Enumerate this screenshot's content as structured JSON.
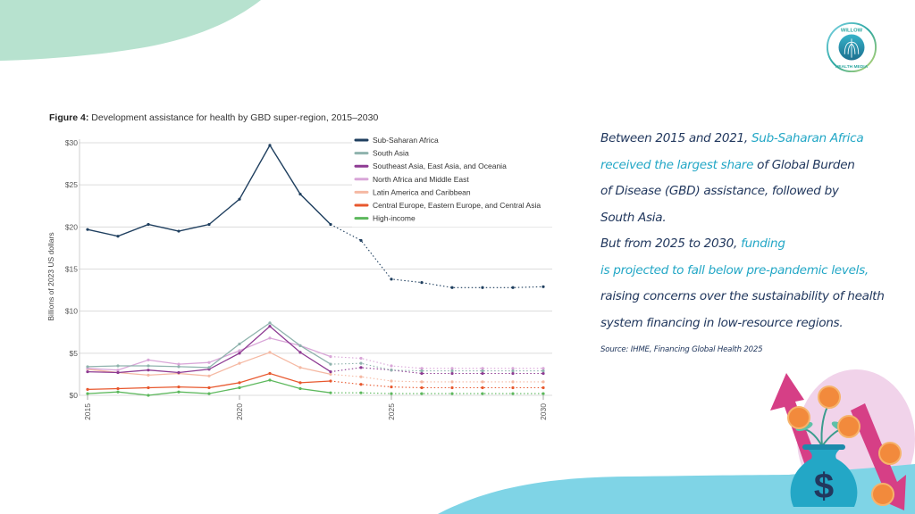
{
  "brand": {
    "name": "Willow Health Media",
    "logo_text_top": "WILLOW",
    "logo_text_bottom": "HEALTH MEDIA",
    "colors": {
      "navy": "#22385e",
      "teal": "#23a7c6",
      "mint": "#b7e2cf",
      "sky": "#7fd4e6",
      "pink": "#d63f86",
      "lilac": "#f1d3ea"
    }
  },
  "figure": {
    "label": "Figure 4:",
    "title": "Development assistance for health by GBD super-region, 2015–2030"
  },
  "chart_data": {
    "type": "line",
    "title": "Development assistance for health by GBD super-region, 2015–2030",
    "xlabel": "",
    "ylabel": "Billions of 2023 US dollars",
    "ylim": [
      0,
      30
    ],
    "xlim": [
      2015,
      2030
    ],
    "yticks": [
      0,
      5,
      10,
      15,
      20,
      25,
      30
    ],
    "ytick_labels": [
      "$0",
      "$5",
      "$10",
      "$15",
      "$20",
      "$25",
      "$30"
    ],
    "xticks": [
      2015,
      2020,
      2025,
      2030
    ],
    "xtick_labels": [
      "2015",
      "2020",
      "2025",
      "2030"
    ],
    "grid": "horizontal",
    "legend_position": "top-right",
    "projection_start": 2023,
    "projection_style": "dotted",
    "x": [
      2015,
      2016,
      2017,
      2018,
      2019,
      2020,
      2021,
      2022,
      2023,
      2024,
      2025,
      2026,
      2027,
      2028,
      2029,
      2030
    ],
    "series": [
      {
        "name": "Sub-Saharan Africa",
        "color": "#1f3f5f",
        "values": [
          19.7,
          18.9,
          20.3,
          19.5,
          20.3,
          23.3,
          29.7,
          23.9,
          20.3,
          18.4,
          13.8,
          13.4,
          12.8,
          12.8,
          12.8,
          12.9
        ]
      },
      {
        "name": "South Asia",
        "color": "#8fb3ad",
        "values": [
          3.4,
          3.5,
          3.5,
          3.4,
          3.3,
          6.1,
          8.6,
          5.9,
          3.7,
          3.8,
          3.0,
          2.9,
          2.9,
          2.9,
          2.9,
          2.9
        ]
      },
      {
        "name": "Southeast Asia, East Asia, and Oceania",
        "color": "#8e3b93",
        "values": [
          2.8,
          2.7,
          3.0,
          2.7,
          3.1,
          5.0,
          8.2,
          5.1,
          2.8,
          3.3,
          3.0,
          2.6,
          2.6,
          2.6,
          2.6,
          2.6
        ]
      },
      {
        "name": "North Africa and Middle East",
        "color": "#d9a6d8",
        "values": [
          3.2,
          3.0,
          4.2,
          3.7,
          3.9,
          5.3,
          6.8,
          5.9,
          4.6,
          4.4,
          3.5,
          3.2,
          3.2,
          3.2,
          3.2,
          3.2
        ]
      },
      {
        "name": "Latin America and Caribbean",
        "color": "#f5b9a3",
        "values": [
          3.1,
          2.7,
          2.4,
          2.6,
          2.3,
          3.8,
          5.1,
          3.3,
          2.5,
          2.2,
          1.7,
          1.6,
          1.6,
          1.6,
          1.6,
          1.6
        ]
      },
      {
        "name": "Central Europe, Eastern Europe, and Central Asia",
        "color": "#e8582e",
        "values": [
          0.7,
          0.8,
          0.9,
          1.0,
          0.9,
          1.5,
          2.6,
          1.5,
          1.7,
          1.3,
          1.0,
          0.9,
          0.9,
          0.9,
          0.9,
          0.9
        ]
      },
      {
        "name": "High-income",
        "color": "#5cb85c",
        "values": [
          0.2,
          0.4,
          0.0,
          0.4,
          0.2,
          0.9,
          1.8,
          0.8,
          0.3,
          0.3,
          0.2,
          0.2,
          0.2,
          0.2,
          0.2,
          0.2
        ]
      }
    ]
  },
  "narrative": {
    "p1_a": "Between 2015 and 2021, ",
    "p1_hl1": "Sub-Saharan Africa",
    "p1_hl2": "received the largest share",
    "p1_b": " of Global Burden",
    "p1_c": "of Disease (GBD) assistance, followed by",
    "p1_d": "South Asia.",
    "p2_a": "But from 2025 to 2030, ",
    "p2_hl1": "funding",
    "p2_hl2": "is projected to fall below pre-pandemic levels,",
    "p2_b": "raising concerns over the sustainability of health",
    "p2_c": "system financing in low-resource regions."
  },
  "source": "Source: IHME, Financing Global Health 2025",
  "illustration": {
    "icon": "money-bag-growth-icon",
    "symbol": "$"
  }
}
